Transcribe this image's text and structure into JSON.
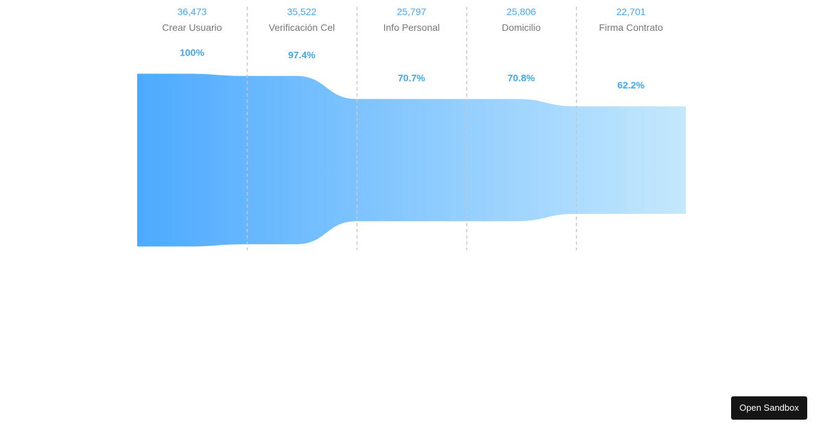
{
  "chart_data": {
    "type": "funnel",
    "categories": [
      "Crear Usuario",
      "Verificación Cel",
      "Info Personal",
      "Domicilio",
      "Firma Contrato"
    ],
    "values": [
      36473,
      35522,
      25797,
      25806,
      22701
    ],
    "value_labels": [
      "36,473",
      "35,522",
      "25,797",
      "25,806",
      "22,701"
    ],
    "percent_labels": [
      "100%",
      "97.4%",
      "70.7%",
      "70.8%",
      "62.2%"
    ],
    "percent_values": [
      100,
      97.4,
      70.7,
      70.8,
      62.2
    ],
    "colors": {
      "gradient_start": "#4daaff",
      "gradient_end": "#c4e8fd",
      "value_text": "#3fa7ef",
      "percent_text": "#3fa7ef",
      "category_text": "#777777",
      "divider": "#c8c8c8"
    }
  },
  "sandbox": {
    "label": "Open Sandbox"
  }
}
